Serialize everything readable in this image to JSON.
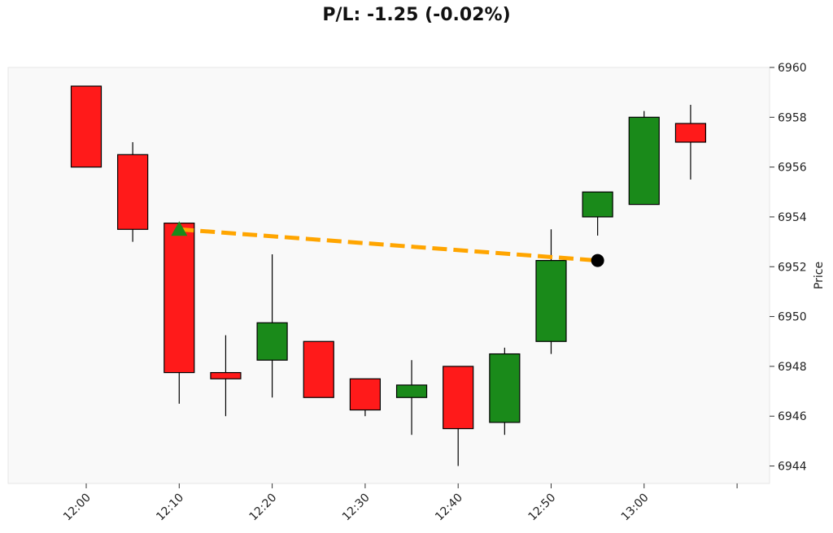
{
  "chart_data": {
    "type": "candlestick",
    "title": "P/L: -1.25 (-0.02%)",
    "ylabel": "Price",
    "xlabel": "",
    "ylim": [
      6943.3,
      6960.0
    ],
    "y_axis_side": "right",
    "x_ticks": [
      "12:00",
      "12:10",
      "12:20",
      "12:30",
      "12:40",
      "12:50",
      "13:00"
    ],
    "y_ticks": [
      6944,
      6946,
      6948,
      6950,
      6952,
      6954,
      6956,
      6958,
      6960
    ],
    "grid": false,
    "colors": {
      "up": "#1a8a1a",
      "down": "#ff1a1a",
      "trade_line": "#ffa500",
      "entry_marker": "#1a8a1a",
      "exit_marker": "#000000",
      "plot_bg": "#f9f9f9"
    },
    "candles": [
      {
        "time": "12:00",
        "open": 6959.25,
        "high": 6959.25,
        "low": 6956.0,
        "close": 6956.0
      },
      {
        "time": "12:05",
        "open": 6956.5,
        "high": 6957.0,
        "low": 6953.0,
        "close": 6953.5
      },
      {
        "time": "12:10",
        "open": 6953.75,
        "high": 6953.75,
        "low": 6946.5,
        "close": 6947.75
      },
      {
        "time": "12:15",
        "open": 6947.75,
        "high": 6949.25,
        "low": 6946.0,
        "close": 6947.5
      },
      {
        "time": "12:20",
        "open": 6948.25,
        "high": 6952.5,
        "low": 6946.75,
        "close": 6949.75
      },
      {
        "time": "12:25",
        "open": 6949.0,
        "high": 6949.0,
        "low": 6946.75,
        "close": 6946.75
      },
      {
        "time": "12:30",
        "open": 6947.5,
        "high": 6947.5,
        "low": 6946.0,
        "close": 6946.25
      },
      {
        "time": "12:35",
        "open": 6946.75,
        "high": 6948.25,
        "low": 6945.25,
        "close": 6947.25
      },
      {
        "time": "12:40",
        "open": 6948.0,
        "high": 6948.0,
        "low": 6944.0,
        "close": 6945.5
      },
      {
        "time": "12:45",
        "open": 6945.75,
        "high": 6948.75,
        "low": 6945.25,
        "close": 6948.5
      },
      {
        "time": "12:50",
        "open": 6949.0,
        "high": 6953.5,
        "low": 6948.5,
        "close": 6952.25
      },
      {
        "time": "12:55",
        "open": 6954.0,
        "high": 6955.0,
        "low": 6953.25,
        "close": 6955.0
      },
      {
        "time": "13:00",
        "open": 6954.5,
        "high": 6958.25,
        "low": 6954.5,
        "close": 6958.0
      },
      {
        "time": "13:05",
        "open": 6957.75,
        "high": 6958.5,
        "low": 6955.5,
        "close": 6957.0
      }
    ],
    "trade": {
      "entry": {
        "time": "12:10",
        "price": 6953.5
      },
      "exit": {
        "time": "12:55",
        "price": 6952.25
      }
    }
  }
}
